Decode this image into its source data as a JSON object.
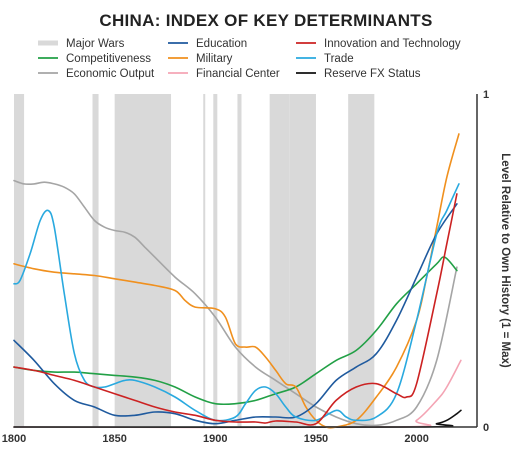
{
  "chart_data": {
    "type": "line",
    "title": "CHINA: INDEX OF KEY DETERMINANTS",
    "ylabel": "Level Relative to Own History (1 = Max)",
    "xlabel": "",
    "xlim": [
      1800,
      2030
    ],
    "ylim": [
      0,
      1
    ],
    "x_ticks": [
      1800,
      1850,
      1900,
      1950,
      2000
    ],
    "y_ticks": [
      0,
      1
    ],
    "legend_position": "top",
    "major_wars_label": "Major Wars",
    "major_wars_color": "#d9d9d9",
    "major_wars": [
      [
        1800,
        1805
      ],
      [
        1839,
        1842
      ],
      [
        1850,
        1878
      ],
      [
        1894,
        1895
      ],
      [
        1899,
        1901
      ],
      [
        1911,
        1913
      ],
      [
        1927,
        1937
      ],
      [
        1937,
        1950
      ],
      [
        1966,
        1979
      ]
    ],
    "series": [
      {
        "name": "Education",
        "color": "#1f5a9e",
        "points": [
          [
            1800,
            0.26
          ],
          [
            1810,
            0.2
          ],
          [
            1820,
            0.13
          ],
          [
            1830,
            0.08
          ],
          [
            1840,
            0.06
          ],
          [
            1850,
            0.035
          ],
          [
            1860,
            0.035
          ],
          [
            1870,
            0.045
          ],
          [
            1880,
            0.04
          ],
          [
            1890,
            0.02
          ],
          [
            1900,
            0.01
          ],
          [
            1910,
            0.02
          ],
          [
            1920,
            0.03
          ],
          [
            1930,
            0.03
          ],
          [
            1940,
            0.03
          ],
          [
            1950,
            0.07
          ],
          [
            1960,
            0.14
          ],
          [
            1970,
            0.18
          ],
          [
            1980,
            0.22
          ],
          [
            1990,
            0.32
          ],
          [
            2000,
            0.45
          ],
          [
            2010,
            0.58
          ],
          [
            2020,
            0.67
          ]
        ]
      },
      {
        "name": "Innovation and Technology",
        "color": "#cc2222",
        "points": [
          [
            1800,
            0.18
          ],
          [
            1810,
            0.17
          ],
          [
            1820,
            0.155
          ],
          [
            1830,
            0.14
          ],
          [
            1840,
            0.12
          ],
          [
            1850,
            0.1
          ],
          [
            1860,
            0.08
          ],
          [
            1870,
            0.06
          ],
          [
            1880,
            0.045
          ],
          [
            1890,
            0.035
          ],
          [
            1900,
            0.02
          ],
          [
            1910,
            0.015
          ],
          [
            1920,
            0.015
          ],
          [
            1925,
            0.012
          ],
          [
            1930,
            0.018
          ],
          [
            1940,
            0.015
          ],
          [
            1950,
            0.01
          ],
          [
            1960,
            0.08
          ],
          [
            1970,
            0.12
          ],
          [
            1980,
            0.13
          ],
          [
            1990,
            0.1
          ],
          [
            1995,
            0.09
          ],
          [
            2000,
            0.13
          ],
          [
            2010,
            0.4
          ],
          [
            2015,
            0.55
          ],
          [
            2020,
            0.7
          ]
        ]
      },
      {
        "name": "Competitiveness",
        "color": "#22a046",
        "points": [
          [
            1800,
            0.18
          ],
          [
            1810,
            0.17
          ],
          [
            1820,
            0.165
          ],
          [
            1830,
            0.165
          ],
          [
            1840,
            0.16
          ],
          [
            1850,
            0.155
          ],
          [
            1860,
            0.15
          ],
          [
            1870,
            0.14
          ],
          [
            1880,
            0.12
          ],
          [
            1890,
            0.09
          ],
          [
            1900,
            0.07
          ],
          [
            1910,
            0.07
          ],
          [
            1920,
            0.08
          ],
          [
            1930,
            0.1
          ],
          [
            1940,
            0.12
          ],
          [
            1950,
            0.16
          ],
          [
            1960,
            0.2
          ],
          [
            1970,
            0.23
          ],
          [
            1980,
            0.29
          ],
          [
            1990,
            0.37
          ],
          [
            2000,
            0.43
          ],
          [
            2010,
            0.49
          ],
          [
            2014,
            0.51
          ],
          [
            2020,
            0.47
          ]
        ]
      },
      {
        "name": "Military",
        "color": "#f0901e",
        "points": [
          [
            1800,
            0.49
          ],
          [
            1810,
            0.475
          ],
          [
            1820,
            0.465
          ],
          [
            1830,
            0.46
          ],
          [
            1840,
            0.455
          ],
          [
            1850,
            0.445
          ],
          [
            1860,
            0.435
          ],
          [
            1870,
            0.425
          ],
          [
            1880,
            0.41
          ],
          [
            1885,
            0.38
          ],
          [
            1890,
            0.36
          ],
          [
            1900,
            0.355
          ],
          [
            1905,
            0.33
          ],
          [
            1910,
            0.25
          ],
          [
            1915,
            0.24
          ],
          [
            1920,
            0.24
          ],
          [
            1925,
            0.21
          ],
          [
            1930,
            0.17
          ],
          [
            1935,
            0.13
          ],
          [
            1940,
            0.12
          ],
          [
            1945,
            0.06
          ],
          [
            1950,
            0.02
          ],
          [
            1955,
            0.0
          ],
          [
            1960,
            0.0
          ],
          [
            1970,
            0.02
          ],
          [
            1980,
            0.09
          ],
          [
            1990,
            0.18
          ],
          [
            2000,
            0.32
          ],
          [
            2005,
            0.45
          ],
          [
            2010,
            0.6
          ],
          [
            2015,
            0.75
          ],
          [
            2021,
            0.88
          ]
        ]
      },
      {
        "name": "Trade",
        "color": "#29a9df",
        "points": [
          [
            1800,
            0.43
          ],
          [
            1803,
            0.44
          ],
          [
            1808,
            0.52
          ],
          [
            1813,
            0.62
          ],
          [
            1817,
            0.65
          ],
          [
            1820,
            0.6
          ],
          [
            1825,
            0.4
          ],
          [
            1830,
            0.22
          ],
          [
            1835,
            0.14
          ],
          [
            1840,
            0.12
          ],
          [
            1845,
            0.12
          ],
          [
            1850,
            0.13
          ],
          [
            1855,
            0.14
          ],
          [
            1860,
            0.14
          ],
          [
            1870,
            0.12
          ],
          [
            1880,
            0.09
          ],
          [
            1890,
            0.05
          ],
          [
            1900,
            0.02
          ],
          [
            1910,
            0.03
          ],
          [
            1915,
            0.07
          ],
          [
            1920,
            0.11
          ],
          [
            1925,
            0.12
          ],
          [
            1930,
            0.1
          ],
          [
            1935,
            0.06
          ],
          [
            1940,
            0.03
          ],
          [
            1950,
            0.02
          ],
          [
            1960,
            0.05
          ],
          [
            1965,
            0.03
          ],
          [
            1970,
            0.02
          ],
          [
            1980,
            0.03
          ],
          [
            1990,
            0.1
          ],
          [
            2000,
            0.32
          ],
          [
            2010,
            0.58
          ],
          [
            2015,
            0.65
          ],
          [
            2021,
            0.73
          ]
        ]
      },
      {
        "name": "Economic Output",
        "color": "#a5a5a5",
        "points": [
          [
            1800,
            0.74
          ],
          [
            1805,
            0.73
          ],
          [
            1810,
            0.73
          ],
          [
            1815,
            0.735
          ],
          [
            1820,
            0.73
          ],
          [
            1825,
            0.72
          ],
          [
            1830,
            0.7
          ],
          [
            1835,
            0.66
          ],
          [
            1840,
            0.62
          ],
          [
            1845,
            0.6
          ],
          [
            1850,
            0.59
          ],
          [
            1855,
            0.585
          ],
          [
            1860,
            0.57
          ],
          [
            1865,
            0.54
          ],
          [
            1870,
            0.51
          ],
          [
            1880,
            0.45
          ],
          [
            1890,
            0.4
          ],
          [
            1900,
            0.33
          ],
          [
            1910,
            0.24
          ],
          [
            1920,
            0.18
          ],
          [
            1930,
            0.14
          ],
          [
            1940,
            0.1
          ],
          [
            1950,
            0.06
          ],
          [
            1960,
            0.03
          ],
          [
            1970,
            0.01
          ],
          [
            1980,
            0.005
          ],
          [
            1990,
            0.02
          ],
          [
            2000,
            0.06
          ],
          [
            2010,
            0.2
          ],
          [
            2020,
            0.48
          ]
        ]
      },
      {
        "name": "Financial Center",
        "color": "#f4a4b4",
        "points": [
          [
            1800,
            0
          ],
          [
            1990,
            0
          ],
          [
            2000,
            0.02
          ],
          [
            2010,
            0.08
          ],
          [
            2015,
            0.12
          ],
          [
            2022,
            0.2
          ]
        ]
      },
      {
        "name": "Reserve FX Status",
        "color": "#111111",
        "points": [
          [
            1800,
            0
          ],
          [
            2000,
            0
          ],
          [
            2010,
            0.01
          ],
          [
            2015,
            0.02
          ],
          [
            2020,
            0.04
          ],
          [
            2022,
            0.05
          ]
        ]
      }
    ],
    "legend_order": [
      "Major Wars",
      "Education",
      "Innovation and Technology",
      "Competitiveness",
      "Military",
      "Trade",
      "Economic Output",
      "Financial Center",
      "Reserve FX Status"
    ]
  }
}
